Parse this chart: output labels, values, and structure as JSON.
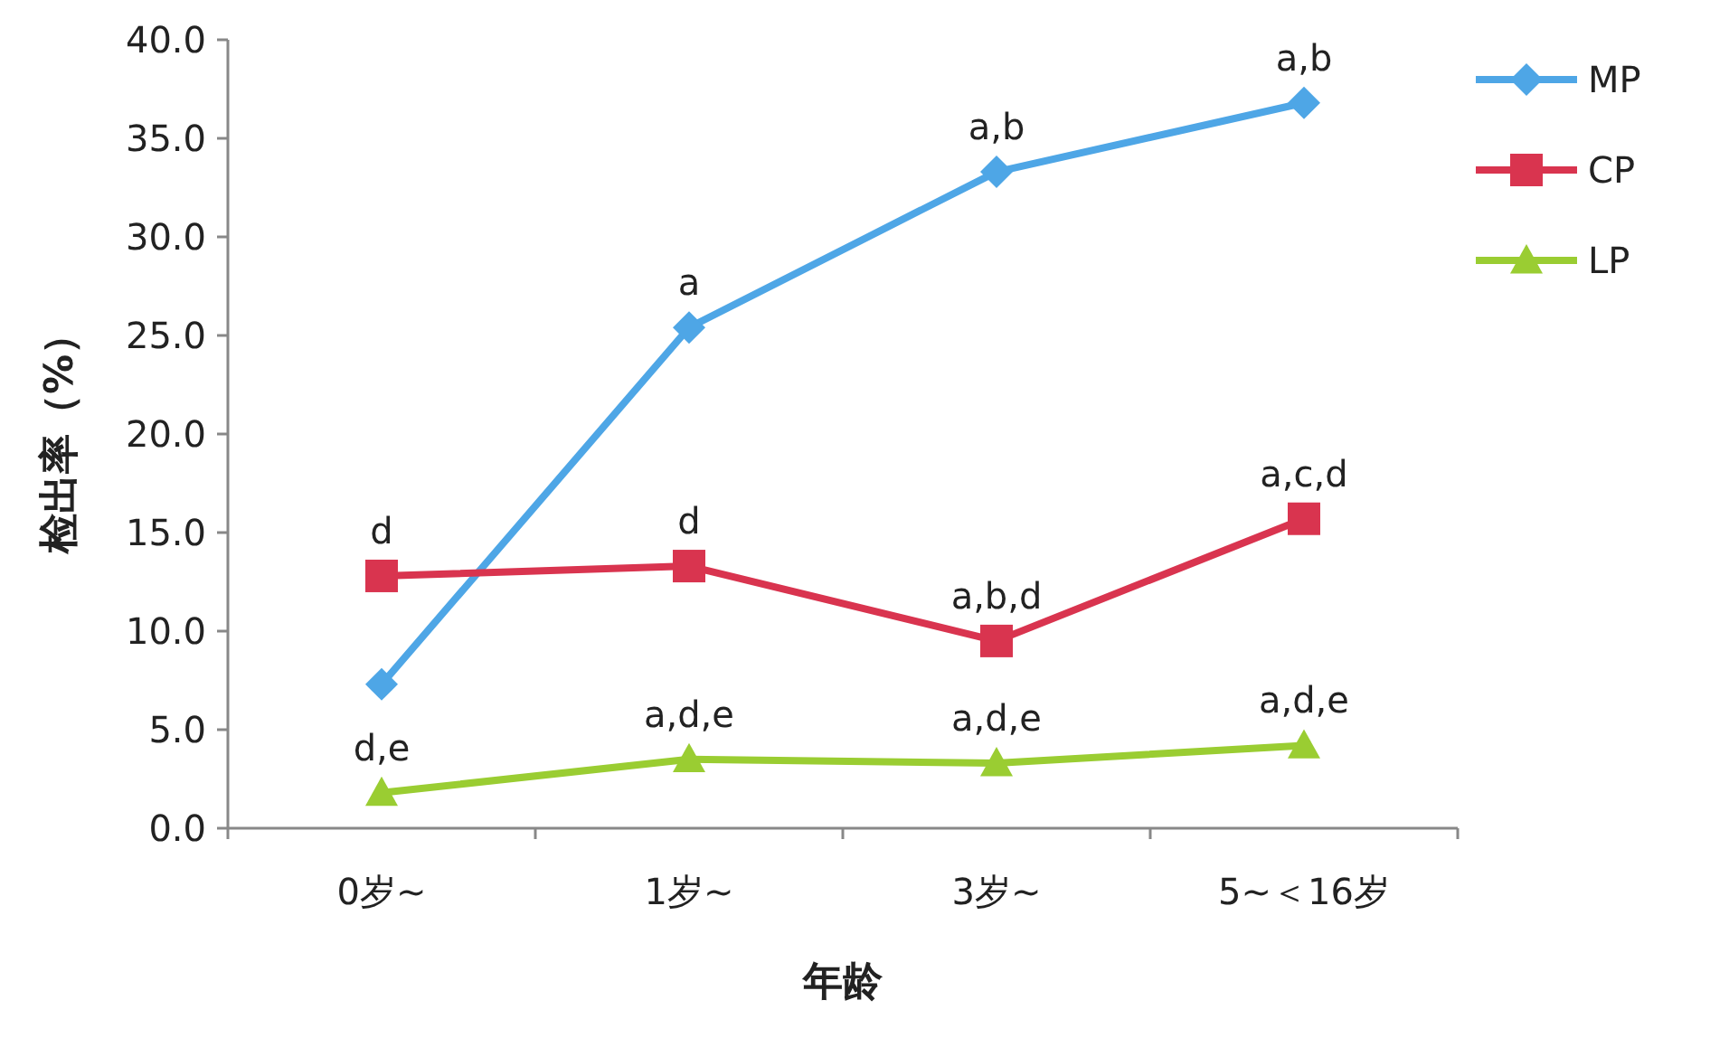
{
  "chart_data": {
    "type": "line",
    "xlabel": "年龄",
    "ylabel": "检出率（%）",
    "categories": [
      "0岁~",
      "1岁~",
      "3岁~",
      "5~＜16岁"
    ],
    "series": [
      {
        "name": "MP",
        "color": "#4ea6e6",
        "marker": "diamond",
        "values": [
          7.3,
          25.4,
          33.3,
          36.8
        ]
      },
      {
        "name": "CP",
        "color": "#d9344f",
        "marker": "square",
        "values": [
          12.8,
          13.3,
          9.5,
          15.7
        ]
      },
      {
        "name": "LP",
        "color": "#9acd32",
        "marker": "triangle",
        "values": [
          1.8,
          3.5,
          3.3,
          4.2
        ]
      }
    ],
    "ylim": [
      0,
      40
    ],
    "yticks": [
      {
        "value": 0,
        "label": "0.0"
      },
      {
        "value": 5,
        "label": "5.0"
      },
      {
        "value": 10,
        "label": "10.0"
      },
      {
        "value": 15,
        "label": "15.0"
      },
      {
        "value": 20,
        "label": "20.0"
      },
      {
        "value": 25,
        "label": "25.0"
      },
      {
        "value": 30,
        "label": "30.0"
      },
      {
        "value": 35,
        "label": "35.0"
      },
      {
        "value": 40,
        "label": "40.0"
      }
    ],
    "grid": false,
    "legend": "top right",
    "line_style": "solid",
    "annotations": [
      {
        "text": "a,b",
        "x": "5~＜16岁",
        "y": 36.8
      },
      {
        "text": "a,b",
        "x": "3岁~",
        "y": 33.3
      },
      {
        "text": "a",
        "x": "1岁~",
        "y": 25.4
      },
      {
        "text": "d",
        "x": "0岁~",
        "y": 12.8
      },
      {
        "text": "d",
        "x": "1岁~",
        "y": 13.3
      },
      {
        "text": "a,b,d",
        "x": "3岁~",
        "y": 9.5
      },
      {
        "text": "a,c,d",
        "x": "5~＜16岁",
        "y": 15.7
      },
      {
        "text": "d,e",
        "x": "0岁~",
        "y": 1.8
      },
      {
        "text": "a,d,e",
        "x": "1岁~",
        "y": 3.5
      },
      {
        "text": "a,d,e",
        "x": "3岁~",
        "y": 3.3
      },
      {
        "text": "a,d,e",
        "x": "5~＜16岁",
        "y": 4.2
      }
    ]
  }
}
